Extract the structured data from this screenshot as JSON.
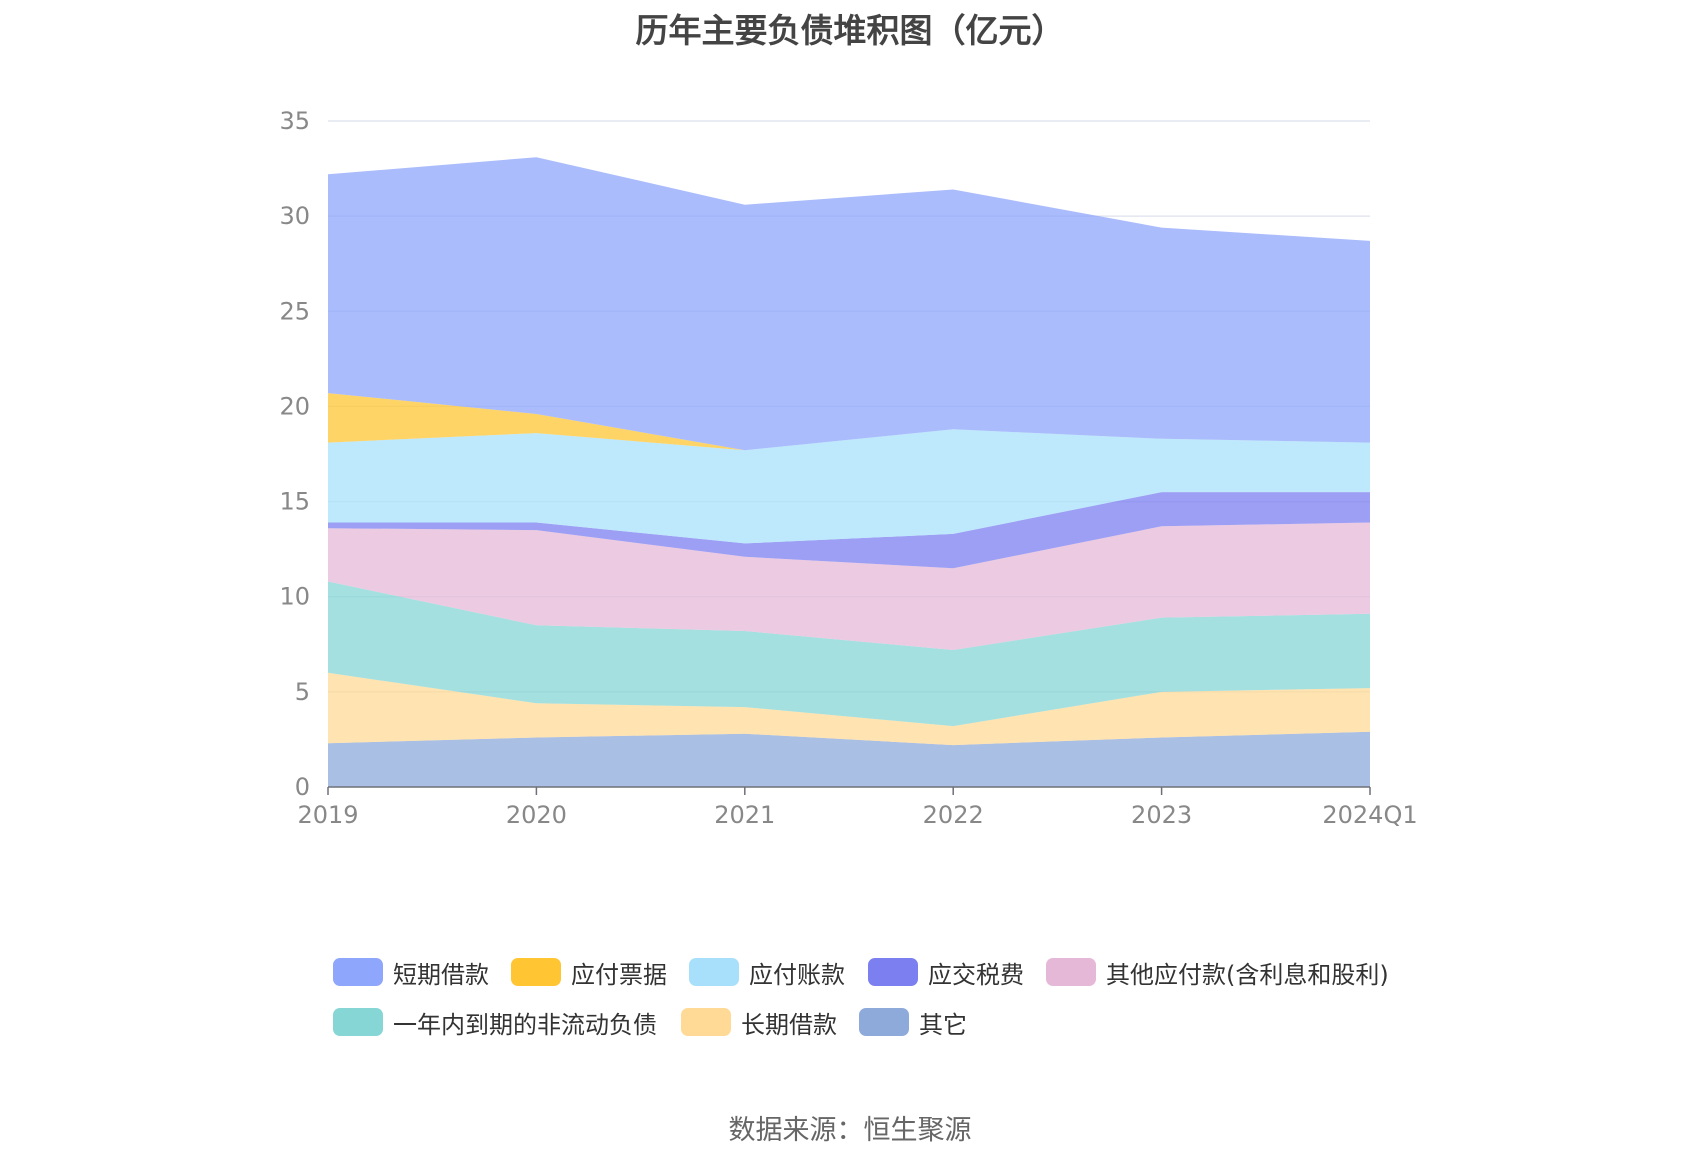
{
  "chart_data": {
    "type": "area",
    "stacked": true,
    "title": "历年主要负债堆积图（亿元）",
    "categories": [
      "2019",
      "2020",
      "2021",
      "2022",
      "2023",
      "2024Q1"
    ],
    "ylim": [
      0,
      35
    ],
    "yticks": [
      0,
      5,
      10,
      15,
      20,
      25,
      30,
      35
    ],
    "grid": true,
    "legend_position": "bottom",
    "series": [
      {
        "name": "其它",
        "color": "#8eaadb",
        "values": [
          2.3,
          2.6,
          2.8,
          2.2,
          2.6,
          2.9
        ]
      },
      {
        "name": "长期借款",
        "color": "#ffd996",
        "values": [
          3.7,
          1.8,
          1.4,
          1.0,
          2.4,
          2.3
        ]
      },
      {
        "name": "一年内到期的非流动负债",
        "color": "#86d6d6",
        "values": [
          4.8,
          4.1,
          4.0,
          4.0,
          3.9,
          3.9
        ]
      },
      {
        "name": "其他应付款(含利息和股利)",
        "color": "#e6b8d8",
        "values": [
          2.8,
          5.0,
          3.9,
          4.3,
          4.8,
          4.8
        ]
      },
      {
        "name": "应交税费",
        "color": "#7b7ff0",
        "values": [
          0.3,
          0.4,
          0.7,
          1.8,
          1.8,
          1.6
        ]
      },
      {
        "name": "应付账款",
        "color": "#a8e0fb",
        "values": [
          4.2,
          4.7,
          4.9,
          5.5,
          2.8,
          2.6
        ]
      },
      {
        "name": "应付票据",
        "color": "#ffc533",
        "values": [
          2.6,
          1.0,
          0.0,
          0.0,
          0.0,
          0.0
        ]
      },
      {
        "name": "短期借款",
        "color": "#8ea6fb",
        "values": [
          11.5,
          13.5,
          12.9,
          12.6,
          11.1,
          10.6
        ]
      }
    ],
    "legend_order": [
      "短期借款",
      "应付票据",
      "应付账款",
      "应交税费",
      "其他应付款(含利息和股利)",
      "一年内到期的非流动负债",
      "长期借款",
      "其它"
    ],
    "source": "数据来源：恒生聚源"
  }
}
